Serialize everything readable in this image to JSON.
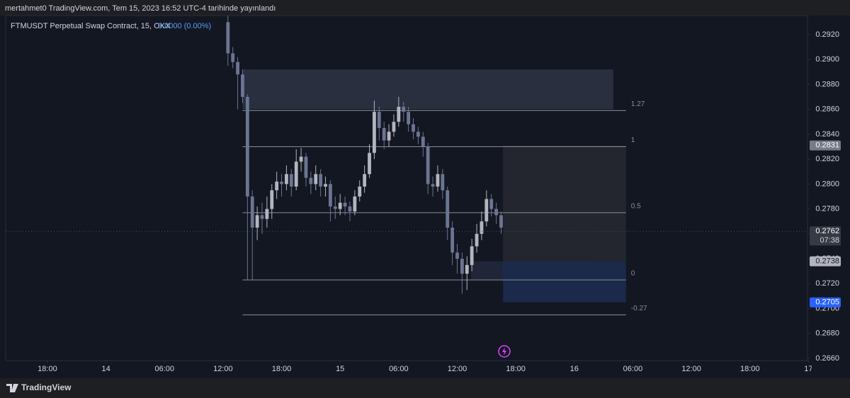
{
  "header": "mertahmet0 TradingView.com, Tem 15, 2023 16:52 UTC-4 tarihinde yayınlandı",
  "footer": "TradingView",
  "chart_data": {
    "type": "candlestick",
    "title": "FTMUSDT Perpetual Swap Contract, 15, OKX",
    "subtitle": "0.0000 (0.00%)",
    "up_color": "#b2b5be",
    "down_color": "#6a7591",
    "x": [
      18.5,
      19,
      19.5,
      20,
      20.5,
      21,
      21.5,
      22,
      22.5,
      23,
      23.5,
      24,
      24.5,
      25,
      25.5,
      26,
      26.5,
      27,
      27.5,
      28,
      28.5,
      29,
      29.5,
      30,
      30.5,
      31,
      31.5,
      32,
      32.5,
      33,
      33.5,
      34,
      34.5,
      35,
      35.5,
      36,
      36.5,
      37,
      37.5,
      38,
      38.5,
      39,
      39.5,
      40,
      40.5,
      41,
      41.5,
      42,
      42.5,
      43,
      43.5,
      44,
      44.5,
      45,
      45.5,
      46,
      46.5
    ],
    "candles": [
      [
        0.293,
        0.2935,
        0.2895,
        0.2905
      ],
      [
        0.2905,
        0.291,
        0.2893,
        0.2898
      ],
      [
        0.2898,
        0.2902,
        0.286,
        0.2888
      ],
      [
        0.2888,
        0.2892,
        0.2865,
        0.287
      ],
      [
        0.287,
        0.2872,
        0.2723,
        0.279
      ],
      [
        0.279,
        0.2795,
        0.2723,
        0.2765
      ],
      [
        0.2765,
        0.2782,
        0.2755,
        0.2775
      ],
      [
        0.2775,
        0.2785,
        0.276,
        0.2772
      ],
      [
        0.2772,
        0.279,
        0.2765,
        0.278
      ],
      [
        0.278,
        0.28,
        0.2772,
        0.2795
      ],
      [
        0.2795,
        0.281,
        0.2788,
        0.2802
      ],
      [
        0.2802,
        0.2808,
        0.279,
        0.28
      ],
      [
        0.28,
        0.2815,
        0.2795,
        0.2808
      ],
      [
        0.2808,
        0.2812,
        0.279,
        0.2798
      ],
      [
        0.2798,
        0.2828,
        0.2795,
        0.2818
      ],
      [
        0.2818,
        0.2829,
        0.281,
        0.2822
      ],
      [
        0.2822,
        0.2825,
        0.2798,
        0.2805
      ],
      [
        0.2805,
        0.281,
        0.2792,
        0.28
      ],
      [
        0.28,
        0.2815,
        0.2795,
        0.2808
      ],
      [
        0.2808,
        0.2812,
        0.279,
        0.2798
      ],
      [
        0.2798,
        0.2806,
        0.279,
        0.28
      ],
      [
        0.28,
        0.2803,
        0.277,
        0.2782
      ],
      [
        0.2782,
        0.279,
        0.2772,
        0.278
      ],
      [
        0.278,
        0.2792,
        0.2775,
        0.2785
      ],
      [
        0.2785,
        0.279,
        0.2775,
        0.2782
      ],
      [
        0.2782,
        0.2786,
        0.277,
        0.2778
      ],
      [
        0.2778,
        0.2795,
        0.2775,
        0.279
      ],
      [
        0.279,
        0.2803,
        0.2786,
        0.2798
      ],
      [
        0.2798,
        0.2815,
        0.2793,
        0.2808
      ],
      [
        0.2808,
        0.2832,
        0.2805,
        0.2825
      ],
      [
        0.2825,
        0.2867,
        0.282,
        0.2858
      ],
      [
        0.2858,
        0.2862,
        0.2835,
        0.2845
      ],
      [
        0.2845,
        0.285,
        0.2828,
        0.2835
      ],
      [
        0.2835,
        0.2848,
        0.283,
        0.2842
      ],
      [
        0.2842,
        0.2856,
        0.2838,
        0.285
      ],
      [
        0.285,
        0.287,
        0.2846,
        0.2862
      ],
      [
        0.2862,
        0.2866,
        0.285,
        0.2858
      ],
      [
        0.2858,
        0.2862,
        0.2842,
        0.2848
      ],
      [
        0.2848,
        0.2853,
        0.2836,
        0.2842
      ],
      [
        0.2842,
        0.2846,
        0.2832,
        0.2838
      ],
      [
        0.2838,
        0.2842,
        0.2822,
        0.283
      ],
      [
        0.283,
        0.2833,
        0.2792,
        0.28
      ],
      [
        0.28,
        0.2806,
        0.279,
        0.2798
      ],
      [
        0.2798,
        0.2815,
        0.2794,
        0.2808
      ],
      [
        0.2808,
        0.2812,
        0.2788,
        0.2795
      ],
      [
        0.2795,
        0.2798,
        0.2755,
        0.2765
      ],
      [
        0.2765,
        0.277,
        0.2735,
        0.2745
      ],
      [
        0.2745,
        0.2752,
        0.2728,
        0.274
      ],
      [
        0.274,
        0.2745,
        0.2712,
        0.2728
      ],
      [
        0.2728,
        0.2742,
        0.2715,
        0.2735
      ],
      [
        0.2735,
        0.2756,
        0.273,
        0.275
      ],
      [
        0.275,
        0.2768,
        0.2745,
        0.276
      ],
      [
        0.276,
        0.2778,
        0.2755,
        0.277
      ],
      [
        0.277,
        0.2795,
        0.2766,
        0.2788
      ],
      [
        0.2788,
        0.2792,
        0.2774,
        0.278
      ],
      [
        0.278,
        0.2785,
        0.2768,
        0.2775
      ],
      [
        0.2775,
        0.2778,
        0.276,
        0.2765
      ]
    ],
    "xlim": [
      -4.28,
      77.9
    ],
    "xticks": [
      {
        "value": 0,
        "label": "18:00"
      },
      {
        "value": 6,
        "label": "14"
      },
      {
        "value": 12,
        "label": "06:00"
      },
      {
        "value": 18,
        "label": "12:00"
      },
      {
        "value": 24,
        "label": "18:00"
      },
      {
        "value": 30,
        "label": "15"
      },
      {
        "value": 36,
        "label": "06:00"
      },
      {
        "value": 42,
        "label": "12:00"
      },
      {
        "value": 48,
        "label": "18:00"
      },
      {
        "value": 54,
        "label": "16"
      },
      {
        "value": 60,
        "label": "06:00"
      },
      {
        "value": 66,
        "label": "12:00"
      },
      {
        "value": 72,
        "label": "18:00"
      },
      {
        "value": 78,
        "label": "17"
      }
    ],
    "ylim": [
      0.26583,
      0.29353
    ],
    "yticks": [
      {
        "value": 0.292,
        "label": "0.2920"
      },
      {
        "value": 0.29,
        "label": "0.2900"
      },
      {
        "value": 0.288,
        "label": "0.2880"
      },
      {
        "value": 0.286,
        "label": "0.2860"
      },
      {
        "value": 0.284,
        "label": "0.2840"
      },
      {
        "value": 0.282,
        "label": "0.2820"
      },
      {
        "value": 0.28,
        "label": "0.2800"
      },
      {
        "value": 0.278,
        "label": "0.2780"
      },
      {
        "value": 0.276,
        "label": "0.2760"
      },
      {
        "value": 0.274,
        "label": "0.2740"
      },
      {
        "value": 0.272,
        "label": "0.2720"
      },
      {
        "value": 0.27,
        "label": "0.2700"
      },
      {
        "value": 0.268,
        "label": "0.2680"
      },
      {
        "value": 0.266,
        "label": "0.2660"
      }
    ],
    "boxes": [
      {
        "x0": 20.0,
        "x1": 58.0,
        "top": 0.2892,
        "bottom": 0.286,
        "color": "#2a2f40"
      },
      {
        "x0": 46.7,
        "x1": 59.3,
        "top": 0.2831,
        "bottom": 0.2738,
        "color": "#23262f"
      },
      {
        "x0": 43.4,
        "x1": 56.2,
        "top": 0.2738,
        "bottom": 0.2723,
        "color": "#1f2638"
      },
      {
        "x0": 46.7,
        "x1": 59.3,
        "top": 0.2738,
        "bottom": 0.2705,
        "color": "#1b2a4a"
      }
    ],
    "fib": {
      "x0": 20.0,
      "x1": 59.3,
      "color": "#8a8d96",
      "levels": [
        {
          "ratio": 1.27,
          "price": 0.2859
        },
        {
          "ratio": 1,
          "price": 0.283
        },
        {
          "ratio": 0.5,
          "price": 0.2777
        },
        {
          "ratio": 0,
          "price": 0.2723
        },
        {
          "ratio": -0.27,
          "price": 0.2695
        }
      ]
    },
    "price_tags": [
      {
        "value": 0.2831,
        "color": "#787b86"
      },
      {
        "value": 0.2762,
        "color": "#363a45",
        "countdown": "07:38"
      },
      {
        "value": 0.2738,
        "color": "#b2b5be"
      },
      {
        "value": 0.2705,
        "color": "#2962ff"
      }
    ]
  }
}
